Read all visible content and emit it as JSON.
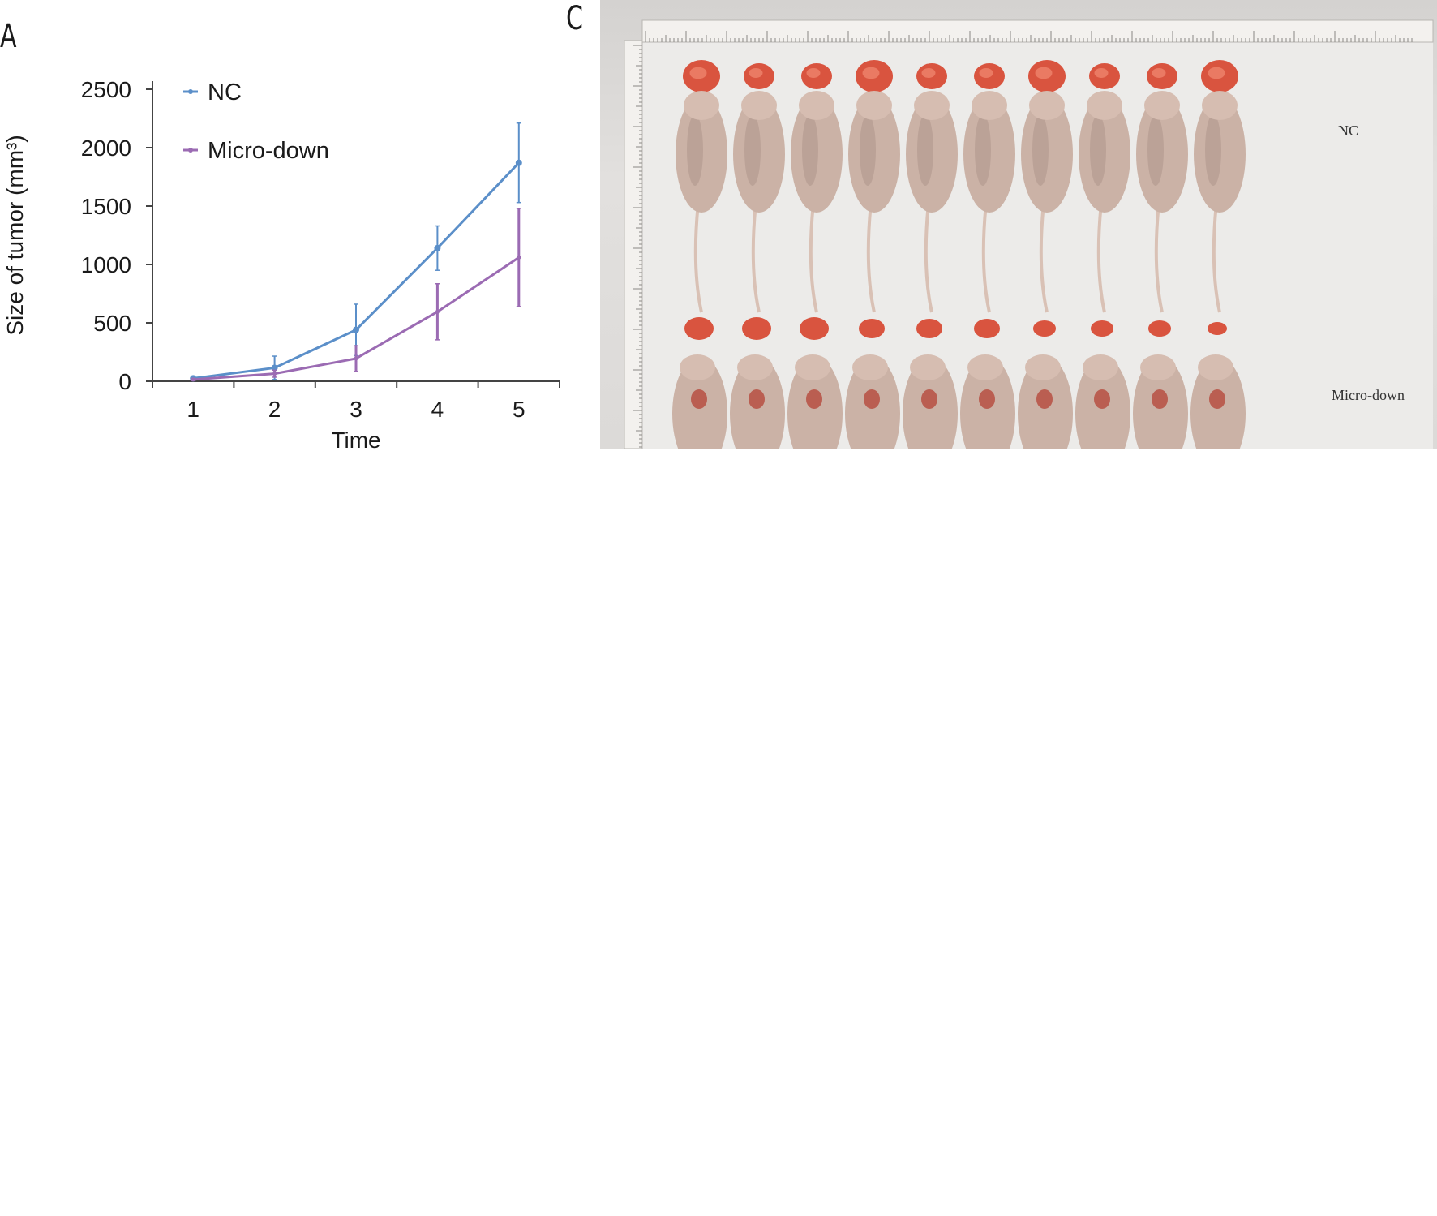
{
  "panels": {
    "a_label": "A",
    "c_label": "C"
  },
  "chart_data": {
    "type": "line",
    "x": [
      1,
      2,
      3,
      4,
      5
    ],
    "xlabel": "Time",
    "ylabel": "Size of tumor (mm³)",
    "ylim": [
      0,
      2500
    ],
    "yticks": [
      0,
      500,
      1000,
      1500,
      2000,
      2500
    ],
    "xticks": [
      1,
      2,
      3,
      4,
      5
    ],
    "grid": false,
    "legend_position": "top-left",
    "series": [
      {
        "name": "NC",
        "color": "#5b8fc9",
        "values": [
          25,
          115,
          440,
          1140,
          1870
        ],
        "errors": [
          15,
          100,
          220,
          190,
          340
        ]
      },
      {
        "name": "Micro-down",
        "color": "#9b6bb3",
        "values": [
          15,
          65,
          195,
          595,
          1060
        ],
        "errors": [
          10,
          30,
          110,
          240,
          420
        ]
      }
    ]
  },
  "photo": {
    "description_labels": {
      "top_row": "NC",
      "bottom_row": "Micro-down"
    },
    "colors": {
      "tumor": "#d9543f",
      "mouse": "#cbb2a6",
      "mouse_shadow": "#a98f84",
      "ruler": "#f3f1ee"
    },
    "top_tumor_count": 10,
    "bottom_tumor_count": 10,
    "mouse_count": 10
  }
}
